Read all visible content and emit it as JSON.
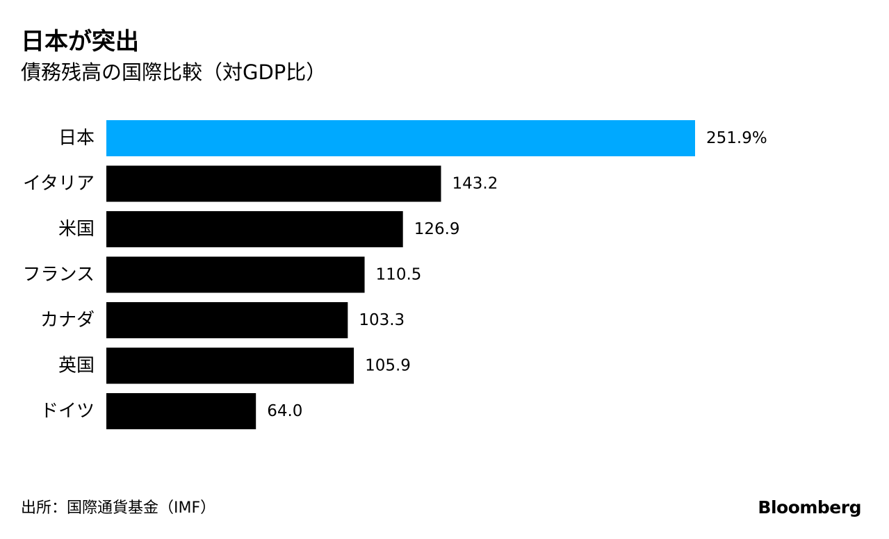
{
  "chart_data": {
    "type": "bar",
    "orientation": "horizontal",
    "title": "日本が突出",
    "subtitle": "債務残高の国際比較（対GDP比）",
    "categories": [
      "日本",
      "イタリア",
      "米国",
      "フランス",
      "カナダ",
      "英国",
      "ドイツ"
    ],
    "values": [
      251.9,
      143.2,
      126.9,
      110.5,
      103.3,
      105.9,
      64.0
    ],
    "value_labels": [
      "251.9%",
      "143.2",
      "126.9",
      "110.5",
      "103.3",
      "105.9",
      "64.0"
    ],
    "bar_colors": [
      "#00a9ff",
      "#000000",
      "#000000",
      "#000000",
      "#000000",
      "#000000",
      "#000000"
    ],
    "xlim": [
      0,
      251.9
    ],
    "grid": false,
    "legend": "none"
  },
  "source": "出所：国際通貨基金（IMF）",
  "brand": "Bloomberg"
}
